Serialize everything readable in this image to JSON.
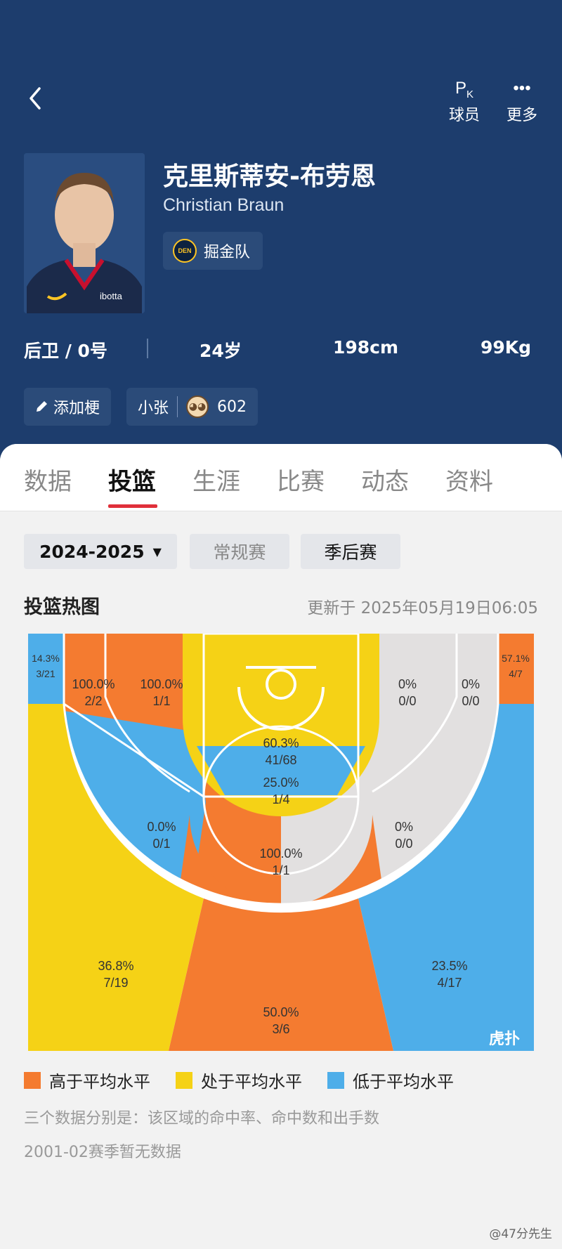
{
  "header": {
    "actions": [
      {
        "label": "球员",
        "icon": "pk-icon"
      },
      {
        "label": "更多",
        "icon": "more-icon"
      }
    ],
    "player": {
      "name_cn": "克里斯蒂安-布劳恩",
      "name_en": "Christian Braun",
      "team": "掘金队",
      "team_logo_text": "DEN",
      "position": "后卫 / 0号",
      "age": "24岁",
      "height": "198cm",
      "weight": "99Kg"
    },
    "chips": {
      "add_label": "添加梗",
      "tag_label": "小张",
      "tag_count": "602"
    }
  },
  "tabs": [
    "数据",
    "投篮",
    "生涯",
    "比赛",
    "动态",
    "资料"
  ],
  "active_tab": "投篮",
  "filters": {
    "season": "2024-2025",
    "regular": "常规赛",
    "playoff": "季后赛"
  },
  "section": {
    "title": "投篮热图",
    "updated": "更新于 2025年05月19日06:05"
  },
  "colors": {
    "above": "#f47b30",
    "average": "#f5d216",
    "below": "#4eaee9",
    "none": "#e2e0e0",
    "header": "#1d3d6d",
    "accent": "#e0303a"
  },
  "zones": {
    "left_corner": {
      "pct": "14.3%",
      "made": "3/21"
    },
    "left_mid_baseline": {
      "pct": "100.0%",
      "made": "2/2"
    },
    "left_short": {
      "pct": "100.0%",
      "made": "1/1"
    },
    "paint": {
      "pct": "60.3%",
      "made": "41/68"
    },
    "right_short": {
      "pct": "0%",
      "made": "0/0"
    },
    "right_mid_baseline": {
      "pct": "0%",
      "made": "0/0"
    },
    "right_corner": {
      "pct": "57.1%",
      "made": "4/7"
    },
    "left_wing_mid": {
      "pct": "0.0%",
      "made": "0/1"
    },
    "free_throw": {
      "pct": "25.0%",
      "made": "1/4"
    },
    "right_wing_mid": {
      "pct": "0%",
      "made": "0/0"
    },
    "top_key": {
      "pct": "100.0%",
      "made": "1/1"
    },
    "left_wing_3": {
      "pct": "36.8%",
      "made": "7/19"
    },
    "top_3": {
      "pct": "50.0%",
      "made": "3/6"
    },
    "right_wing_3": {
      "pct": "23.5%",
      "made": "4/17"
    }
  },
  "court_logo": "虎扑",
  "legend": [
    "高于平均水平",
    "处于平均水平",
    "低于平均水平"
  ],
  "notes": [
    "三个数据分别是：该区域的命中率、命中数和出手数",
    "2001-02赛季暂无数据"
  ],
  "watermark": "@47分先生"
}
